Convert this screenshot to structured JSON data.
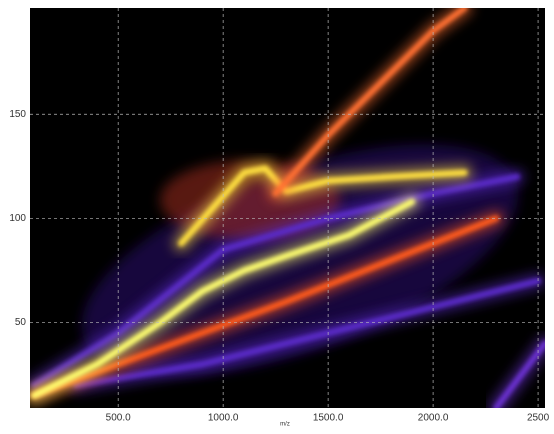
{
  "chart_data": {
    "type": "density-bands",
    "x_label": "m/z",
    "xlim": [
      80,
      2533
    ],
    "ylim": [
      9,
      201
    ],
    "xticks": [
      {
        "value": 500,
        "label": "500.0"
      },
      {
        "value": 1000,
        "label": "1000.0"
      },
      {
        "value": 1500,
        "label": "1500.0"
      },
      {
        "value": 2000,
        "label": "2000.0"
      },
      2500
    ],
    "yticks": [
      50,
      100,
      150
    ],
    "grid": true,
    "background": "#000000",
    "series": [
      {
        "color": "#5a2cc8",
        "x": [
          100,
          500,
          1000,
          1500,
          2000,
          2400
        ],
        "values": [
          20,
          45,
          85,
          100,
          112,
          120
        ]
      },
      {
        "color": "#5a2cc8",
        "x": [
          300,
          900,
          1500,
          2100,
          2500
        ],
        "values": [
          20,
          30,
          45,
          60,
          70
        ]
      },
      {
        "color": "#ff5a1e",
        "x": [
          100,
          500,
          900,
          1300,
          1800,
          2300
        ],
        "values": [
          15,
          30,
          45,
          60,
          80,
          100
        ]
      },
      {
        "color": "#ffff70",
        "x": [
          100,
          400,
          700,
          900,
          1100,
          1300,
          1600,
          1900
        ],
        "values": [
          15,
          30,
          50,
          65,
          75,
          82,
          92,
          108
        ]
      },
      {
        "color": "#ffe040",
        "x": [
          800,
          950,
          1100,
          1200,
          1300,
          1500,
          1800,
          2150
        ],
        "values": [
          88,
          105,
          122,
          124,
          113,
          118,
          120,
          122
        ]
      },
      {
        "color": "#ff7030",
        "x": [
          1250,
          1500,
          1750,
          2000,
          2150
        ],
        "values": [
          112,
          140,
          165,
          190,
          201
        ]
      },
      {
        "color": "#6a30d0",
        "x": [
          2300,
          2420,
          2533
        ],
        "values": [
          9,
          25,
          40
        ]
      }
    ]
  }
}
